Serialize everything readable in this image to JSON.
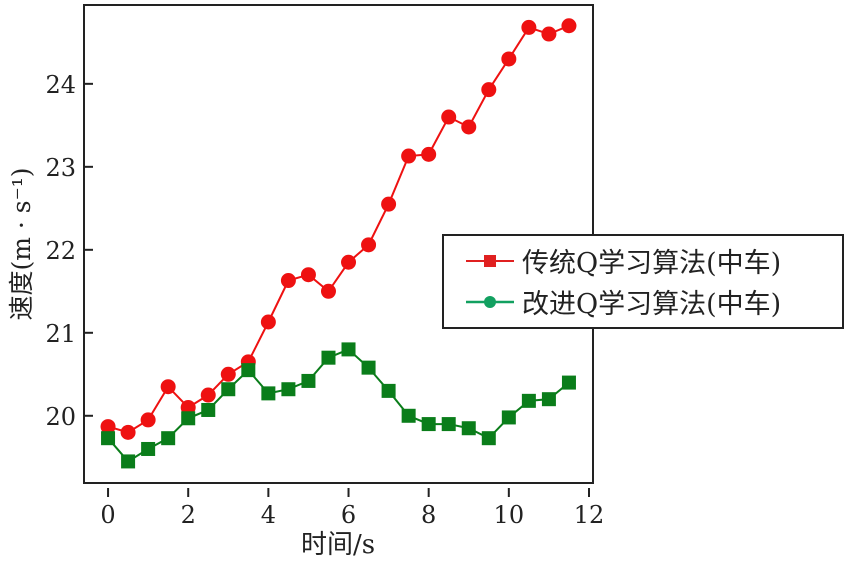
{
  "chart_data": {
    "type": "line",
    "xlabel": "时间/s",
    "ylabel": "速度(m · s⁻¹)",
    "xlim": [
      -0.6,
      12.1
    ],
    "ylim": [
      19.19,
      24.95
    ],
    "xticks": [
      0,
      2,
      4,
      6,
      8,
      10,
      12
    ],
    "yticks": [
      20,
      21,
      22,
      23,
      24
    ],
    "grid": false,
    "legend_position": "right",
    "x": [
      0,
      0.5,
      1,
      1.5,
      2,
      2.5,
      3,
      3.5,
      4,
      4.5,
      5,
      5.5,
      6,
      6.5,
      7,
      7.5,
      8,
      8.5,
      9,
      9.5,
      10,
      10.5,
      11,
      11.5
    ],
    "series": [
      {
        "name": "传统Q学习算法(中车)",
        "color": "#ee1111",
        "legend_color": "#e02020",
        "marker": "circle",
        "legend_marker": "square",
        "values": [
          19.87,
          19.8,
          19.95,
          20.35,
          20.1,
          20.25,
          20.5,
          20.65,
          21.13,
          21.63,
          21.7,
          21.5,
          21.85,
          22.06,
          22.55,
          23.13,
          23.15,
          23.6,
          23.48,
          23.93,
          24.3,
          24.68,
          24.6,
          24.7
        ]
      },
      {
        "name": "改进Q学习算法(中车)",
        "color": "#0a7d1a",
        "legend_color": "#12a060",
        "marker": "square",
        "legend_marker": "circle",
        "values": [
          19.73,
          19.45,
          19.6,
          19.73,
          19.97,
          20.07,
          20.32,
          20.55,
          20.27,
          20.32,
          20.42,
          20.7,
          20.8,
          20.58,
          20.3,
          20.0,
          19.9,
          19.9,
          19.85,
          19.73,
          19.98,
          20.18,
          20.2,
          20.4
        ]
      }
    ]
  }
}
